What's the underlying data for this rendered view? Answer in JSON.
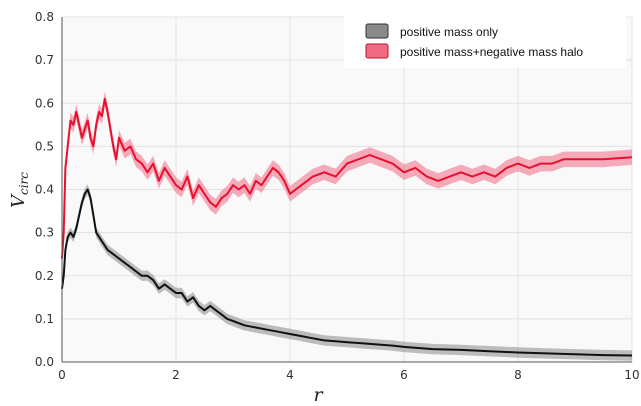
{
  "chart_data": {
    "type": "line",
    "xlabel": "r",
    "ylabel": "V_circ",
    "ylabel_main": "V",
    "ylabel_sub": "circ",
    "xlim": [
      0,
      10
    ],
    "ylim": [
      0,
      0.8
    ],
    "x_ticks": [
      0,
      2,
      4,
      6,
      8,
      10
    ],
    "y_ticks": [
      0.0,
      0.1,
      0.2,
      0.3,
      0.4,
      0.5,
      0.6,
      0.7,
      0.8
    ],
    "x_tick_labels": [
      "0",
      "2",
      "4",
      "6",
      "8",
      "10"
    ],
    "y_tick_labels": [
      "0.0",
      "0.1",
      "0.2",
      "0.3",
      "0.4",
      "0.5",
      "0.6",
      "0.7",
      "0.8"
    ],
    "grid": true,
    "legend_position": "top-right",
    "series": [
      {
        "name": "positive mass only",
        "color": "#111111",
        "band_color": "#8a8a8a",
        "band_halfwidth": 0.012,
        "x": [
          0,
          0.03,
          0.06,
          0.1,
          0.15,
          0.2,
          0.25,
          0.3,
          0.35,
          0.4,
          0.45,
          0.5,
          0.55,
          0.6,
          0.7,
          0.8,
          0.9,
          1.0,
          1.1,
          1.2,
          1.3,
          1.4,
          1.5,
          1.6,
          1.7,
          1.8,
          1.9,
          2.0,
          2.1,
          2.2,
          2.3,
          2.4,
          2.5,
          2.6,
          2.7,
          2.8,
          2.9,
          3.0,
          3.2,
          3.4,
          3.6,
          3.8,
          4.0,
          4.2,
          4.4,
          4.6,
          4.8,
          5.0,
          5.2,
          5.4,
          5.6,
          5.8,
          6.0,
          6.5,
          7.0,
          7.5,
          8.0,
          8.5,
          9.0,
          9.5,
          10.0
        ],
        "y": [
          0.17,
          0.2,
          0.26,
          0.29,
          0.3,
          0.29,
          0.31,
          0.34,
          0.37,
          0.39,
          0.4,
          0.38,
          0.34,
          0.3,
          0.28,
          0.26,
          0.25,
          0.24,
          0.23,
          0.22,
          0.21,
          0.2,
          0.2,
          0.19,
          0.17,
          0.18,
          0.17,
          0.16,
          0.16,
          0.14,
          0.15,
          0.13,
          0.12,
          0.13,
          0.12,
          0.11,
          0.1,
          0.095,
          0.085,
          0.08,
          0.075,
          0.07,
          0.065,
          0.06,
          0.055,
          0.05,
          0.048,
          0.046,
          0.044,
          0.042,
          0.04,
          0.038,
          0.035,
          0.03,
          0.028,
          0.025,
          0.022,
          0.02,
          0.018,
          0.016,
          0.015
        ]
      },
      {
        "name": "positive mass+negative mass halo",
        "color": "#e8102e",
        "band_color": "#f06a85",
        "band_halfwidth": 0.018,
        "x": [
          0,
          0.03,
          0.06,
          0.1,
          0.15,
          0.2,
          0.25,
          0.3,
          0.35,
          0.4,
          0.45,
          0.5,
          0.55,
          0.6,
          0.65,
          0.7,
          0.75,
          0.8,
          0.85,
          0.9,
          0.95,
          1.0,
          1.1,
          1.2,
          1.3,
          1.4,
          1.5,
          1.6,
          1.7,
          1.8,
          1.9,
          2.0,
          2.1,
          2.2,
          2.3,
          2.4,
          2.5,
          2.6,
          2.7,
          2.8,
          2.9,
          3.0,
          3.1,
          3.2,
          3.3,
          3.4,
          3.5,
          3.6,
          3.7,
          3.8,
          3.9,
          4.0,
          4.2,
          4.4,
          4.6,
          4.8,
          5.0,
          5.2,
          5.4,
          5.6,
          5.8,
          6.0,
          6.2,
          6.4,
          6.6,
          6.8,
          7.0,
          7.2,
          7.4,
          7.6,
          7.8,
          8.0,
          8.2,
          8.4,
          8.6,
          8.8,
          9.0,
          9.5,
          10.0
        ],
        "y": [
          0.24,
          0.3,
          0.45,
          0.5,
          0.56,
          0.55,
          0.58,
          0.55,
          0.52,
          0.54,
          0.56,
          0.52,
          0.5,
          0.55,
          0.58,
          0.57,
          0.61,
          0.58,
          0.54,
          0.5,
          0.47,
          0.52,
          0.49,
          0.5,
          0.47,
          0.46,
          0.44,
          0.46,
          0.42,
          0.45,
          0.43,
          0.41,
          0.4,
          0.43,
          0.38,
          0.41,
          0.39,
          0.37,
          0.36,
          0.38,
          0.39,
          0.41,
          0.4,
          0.41,
          0.39,
          0.42,
          0.41,
          0.43,
          0.45,
          0.44,
          0.42,
          0.39,
          0.41,
          0.43,
          0.44,
          0.43,
          0.46,
          0.47,
          0.48,
          0.47,
          0.46,
          0.44,
          0.45,
          0.43,
          0.42,
          0.43,
          0.44,
          0.43,
          0.44,
          0.43,
          0.45,
          0.46,
          0.45,
          0.46,
          0.46,
          0.47,
          0.47,
          0.47,
          0.475
        ]
      }
    ]
  }
}
